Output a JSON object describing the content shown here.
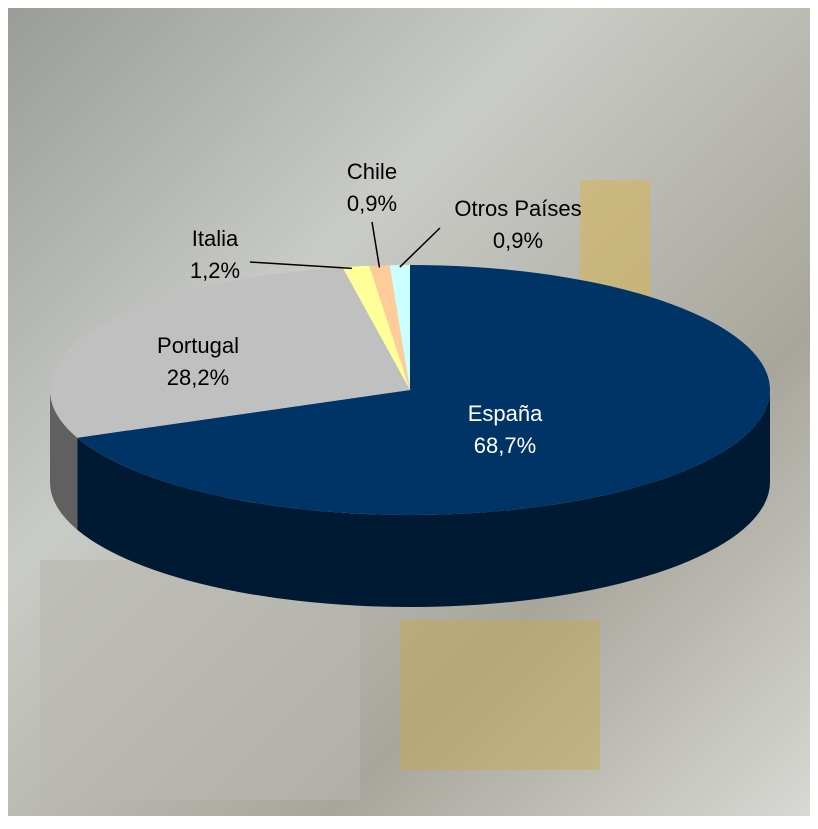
{
  "chart_data": {
    "type": "pie",
    "categories": [
      "España",
      "Portugal",
      "Italia",
      "Chile",
      "Otros Países"
    ],
    "values": [
      68.7,
      28.2,
      1.2,
      0.9,
      0.9
    ],
    "value_labels": [
      "68,7%",
      "28,2%",
      "1,2%",
      "0,9%",
      "0,9%"
    ],
    "colors": [
      "#003366",
      "#c0c0c0",
      "#ffff99",
      "#ffcc99",
      "#ccffff"
    ],
    "label_colors": [
      "#ffffff",
      "#000000",
      "#000000",
      "#000000",
      "#000000"
    ]
  }
}
